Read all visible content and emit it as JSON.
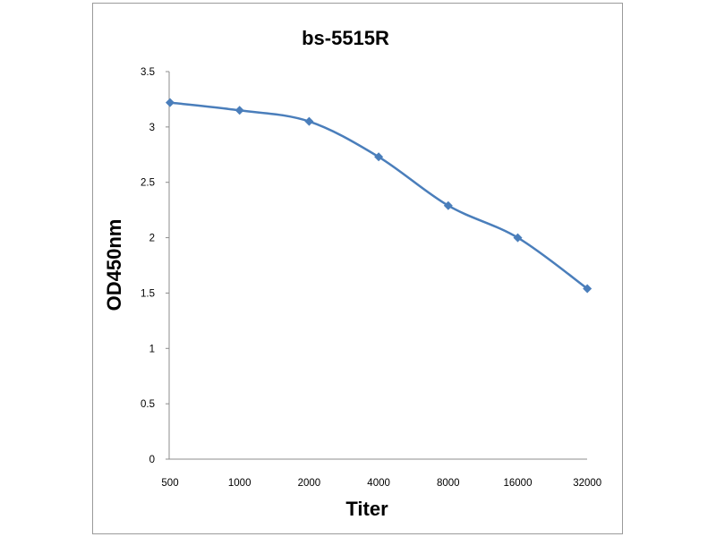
{
  "chart_data": {
    "type": "line",
    "title": "bs-5515R",
    "xlabel": "Titer",
    "ylabel": "OD450nm",
    "categories": [
      "500",
      "1000",
      "2000",
      "4000",
      "8000",
      "16000",
      "32000"
    ],
    "series": [
      {
        "values": [
          3.22,
          3.15,
          3.05,
          2.73,
          2.29,
          2.0,
          1.54
        ]
      }
    ],
    "ylim": [
      0,
      3.5
    ],
    "yticks": [
      "0",
      "0.5",
      "1",
      "1.5",
      "2",
      "2.5",
      "3",
      "3.5"
    ],
    "grid": false,
    "legend": "none",
    "line_color": "#4a7ebb",
    "marker": "diamond"
  }
}
